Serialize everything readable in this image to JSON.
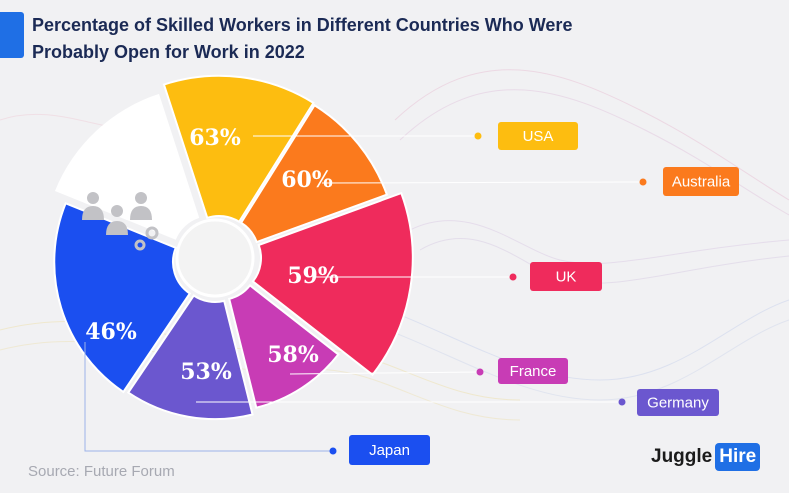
{
  "title_lines": [
    "Percentage of Skilled Workers in Different Countries Who Were",
    "Probably Open for Work in 2022"
  ],
  "source": "Source: Future Forum",
  "brand": {
    "part1": "Juggle",
    "part2": "Hire"
  },
  "chart_data": {
    "type": "pie",
    "title": "Percentage of Skilled Workers in Different Countries Who Were Probably Open for Work in 2022",
    "unit": "%",
    "categories": [
      "USA",
      "Australia",
      "UK",
      "France",
      "Germany",
      "Japan"
    ],
    "values": [
      63,
      60,
      59,
      58,
      53,
      46
    ],
    "labels": [
      "63%",
      "60%",
      "59%",
      "58%",
      "53%",
      "46%"
    ],
    "colors": [
      "#fdbd10",
      "#fb7a1d",
      "#ef2b5c",
      "#c83cb5",
      "#6b57cf",
      "#1b4ff0"
    ]
  }
}
